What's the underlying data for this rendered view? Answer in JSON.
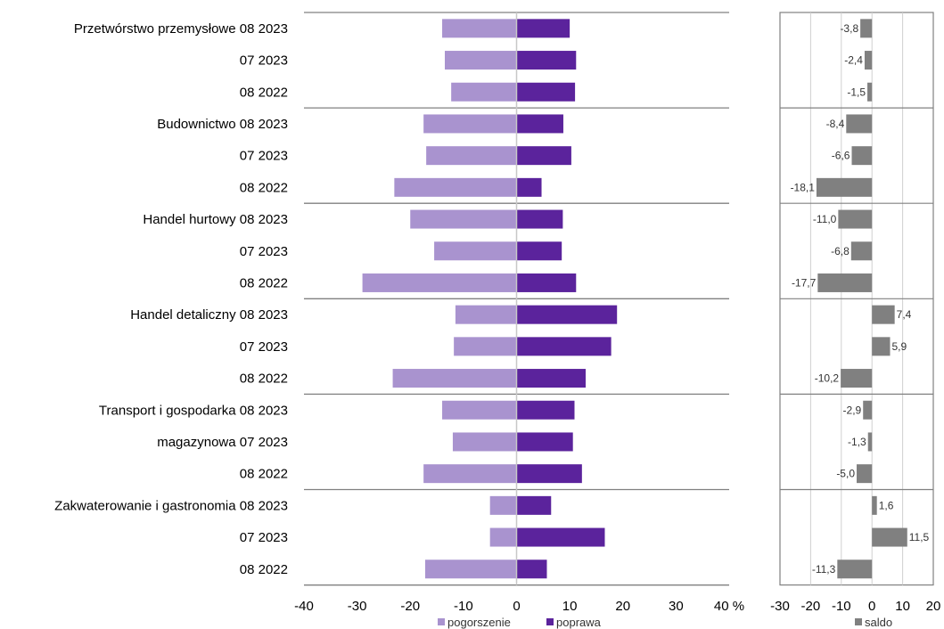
{
  "chart_data": [
    {
      "type": "bar",
      "orientation": "horizontal",
      "categories": [
        "Przetwórstwo przemysłowe 08 2023",
        "07 2023",
        "08 2022",
        "Budownictwo 08 2023",
        "07 2023",
        "08 2022",
        "Handel hurtowy 08 2023",
        "07 2023",
        "08 2022",
        "Handel detaliczny 08 2023",
        "07 2023",
        "08 2022",
        "Transport i gospodarka 08 2023",
        "magazynowa 07 2023",
        "08 2022",
        "Zakwaterowanie i gastronomia 08 2023",
        "07 2023",
        "08 2022"
      ],
      "series": [
        {
          "name": "pogorszenie",
          "color": "#a993cf",
          "values": [
            -14,
            -13.5,
            -12.3,
            -17.5,
            -17,
            -23,
            -20,
            -15.5,
            -29,
            -11.5,
            -11.8,
            -23.3,
            -14,
            -12,
            -17.5,
            -5,
            -5,
            -17.2
          ]
        },
        {
          "name": "poprawa",
          "color": "#5b239c",
          "values": [
            10,
            11.2,
            11,
            8.8,
            10.3,
            4.7,
            8.7,
            8.5,
            11.2,
            18.9,
            17.8,
            13,
            10.9,
            10.6,
            12.3,
            6.5,
            16.6,
            5.7
          ]
        }
      ],
      "xlim": [
        -40,
        40
      ],
      "xticks": [
        "-40",
        "-30",
        "-20",
        "-10",
        "0",
        "10",
        "20",
        "30",
        "40 %"
      ],
      "legend_position": "bottom",
      "grid": false
    },
    {
      "type": "bar",
      "orientation": "horizontal",
      "series": [
        {
          "name": "saldo",
          "color": "#808080",
          "values": [
            -3.8,
            -2.4,
            -1.5,
            -8.4,
            -6.6,
            -18.1,
            -11.0,
            -6.8,
            -17.7,
            7.4,
            5.9,
            -10.2,
            -2.9,
            -1.3,
            -5.0,
            1.6,
            11.5,
            -11.3
          ],
          "labels": [
            "-3,8",
            "-2,4",
            "-1,5",
            "-8,4",
            "-6,6",
            "-18,1",
            "-11,0",
            "-6,8",
            "-17,7",
            "7,4",
            "5,9",
            "-10,2",
            "-2,9",
            "-1,3",
            "-5,0",
            "1,6",
            "11,5",
            "-11,3"
          ]
        }
      ],
      "xlim": [
        -30,
        20
      ],
      "xticks": [
        "-30",
        "-20",
        "-10",
        "0",
        "10",
        "20"
      ],
      "legend_position": "bottom",
      "grid": true
    }
  ]
}
